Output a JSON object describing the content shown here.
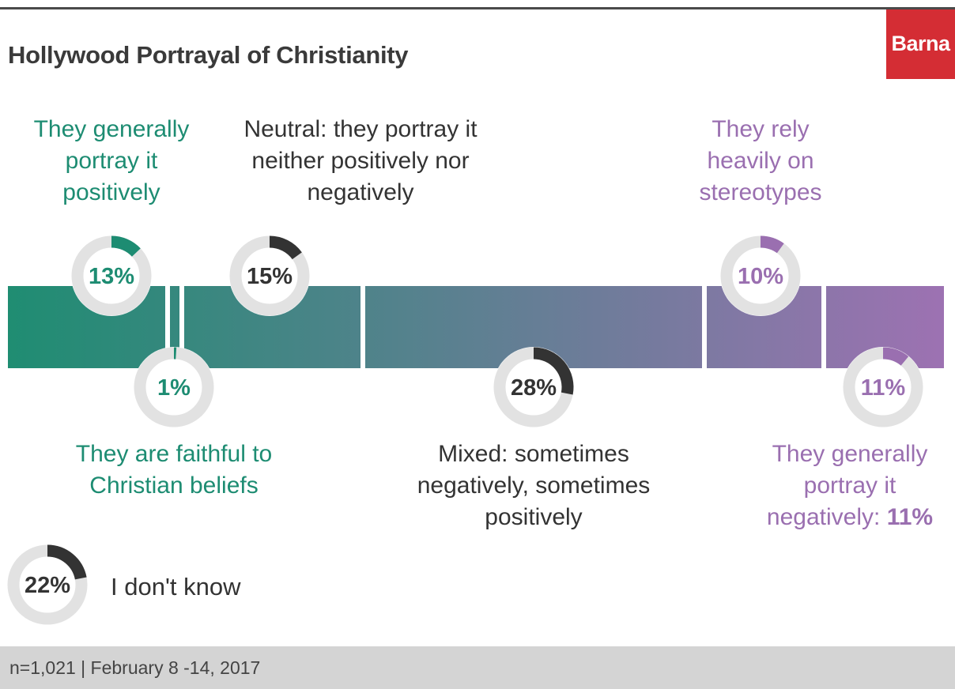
{
  "title": "Hollywood Portrayal of Christianity",
  "brand": "Barna",
  "footer": "n=1,021 | February 8 -14, 2017",
  "colors": {
    "teal": "#1d8c72",
    "purple": "#9a6fb0",
    "dark": "#333333",
    "ring_bg": "#e2e2e2",
    "brand": "#d42d34"
  },
  "chart_data": {
    "type": "donut",
    "title": "Hollywood Portrayal of Christianity",
    "items": [
      {
        "label": "They generally portray it positively",
        "value": 13,
        "pct_label": "13%",
        "color": "#1d8c72"
      },
      {
        "label": "They are faithful to Christian beliefs",
        "value": 1,
        "pct_label": "1%",
        "color": "#1d8c72"
      },
      {
        "label": "Neutral: they portray it neither positively nor negatively",
        "value": 15,
        "pct_label": "15%",
        "color": "#333333"
      },
      {
        "label": "Mixed: sometimes negatively, sometimes positively",
        "value": 28,
        "pct_label": "28%",
        "color": "#333333"
      },
      {
        "label": "They rely heavily on stereotypes",
        "value": 10,
        "pct_label": "10%",
        "color": "#9a6fb0"
      },
      {
        "label": "They generally portray it negatively:",
        "value": 11,
        "pct_label": "11%",
        "value_suffix": "11%",
        "color": "#9a6fb0"
      },
      {
        "label": "I don't know",
        "value": 22,
        "pct_label": "22%",
        "color": "#333333"
      }
    ]
  }
}
